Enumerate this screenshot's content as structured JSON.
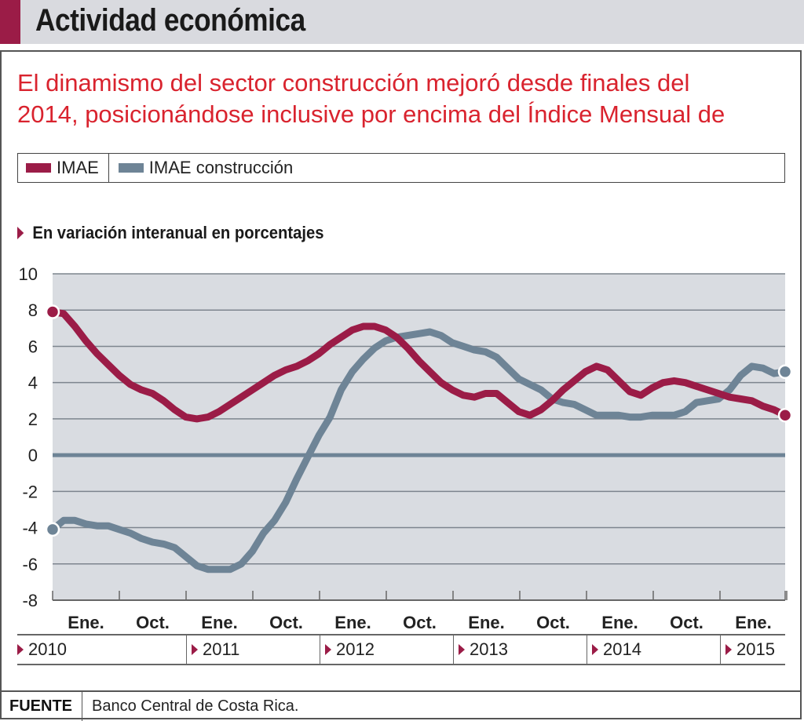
{
  "header": {
    "title": "Actividad económica",
    "accent_color": "#9b1c47"
  },
  "subtitle": {
    "line1": "El dinamismo del sector construcción mejoró desde finales del",
    "line2": "2014, posicionándose inclusive por encima del Índice Mensual de"
  },
  "legend": [
    {
      "label": "IMAE",
      "color": "#9b1c47"
    },
    {
      "label": "IMAE construcción",
      "color": "#6e8496"
    }
  ],
  "unit_label": "En variación interanual en porcentajes",
  "years": [
    "2010",
    "2011",
    "2012",
    "2013",
    "2014",
    "2015"
  ],
  "source": {
    "label": "FUENTE",
    "text": "Banco Central de Costa Rica."
  },
  "chart_data": {
    "type": "line",
    "title": "En variación interanual en porcentajes",
    "xlabel": "",
    "ylabel": "",
    "ylim": [
      -8,
      10
    ],
    "yticks": [
      10,
      8,
      6,
      4,
      2,
      0,
      -2,
      -4,
      -6,
      -8
    ],
    "grid": true,
    "background": "#d9dce1",
    "x_start": "2010-01",
    "x_end": "2015-06",
    "x_tick_labels": [
      "Ene.",
      "Oct.",
      "Ene.",
      "Oct.",
      "Ene.",
      "Oct.",
      "Ene.",
      "Oct.",
      "Ene.",
      "Oct.",
      "Ene."
    ],
    "x_year_labels": [
      "2010",
      "2011",
      "2012",
      "2013",
      "2014",
      "2015"
    ],
    "legend_position": "top",
    "series": [
      {
        "name": "IMAE",
        "color": "#9b1c47",
        "values": [
          7.9,
          7.8,
          7.1,
          6.3,
          5.6,
          5.0,
          4.4,
          3.9,
          3.6,
          3.4,
          3.0,
          2.5,
          2.1,
          2.0,
          2.1,
          2.4,
          2.8,
          3.2,
          3.6,
          4.0,
          4.4,
          4.7,
          4.9,
          5.2,
          5.6,
          6.1,
          6.5,
          6.9,
          7.1,
          7.1,
          6.9,
          6.5,
          5.9,
          5.2,
          4.6,
          4.0,
          3.6,
          3.3,
          3.2,
          3.4,
          3.4,
          2.9,
          2.4,
          2.2,
          2.5,
          3.0,
          3.6,
          4.1,
          4.6,
          4.9,
          4.7,
          4.1,
          3.5,
          3.3,
          3.7,
          4.0,
          4.1,
          4.0,
          3.8,
          3.6,
          3.4,
          3.2,
          3.1,
          3.0,
          2.7,
          2.5,
          2.2
        ]
      },
      {
        "name": "IMAE construcción",
        "color": "#6e8496",
        "values": [
          -4.1,
          -3.6,
          -3.6,
          -3.8,
          -3.9,
          -3.9,
          -4.1,
          -4.3,
          -4.6,
          -4.8,
          -4.9,
          -5.1,
          -5.6,
          -6.1,
          -6.3,
          -6.3,
          -6.3,
          -6.0,
          -5.3,
          -4.3,
          -3.6,
          -2.6,
          -1.3,
          -0.1,
          1.1,
          2.1,
          3.6,
          4.6,
          5.3,
          5.9,
          6.3,
          6.5,
          6.6,
          6.7,
          6.8,
          6.6,
          6.2,
          6.0,
          5.8,
          5.7,
          5.4,
          4.8,
          4.2,
          3.9,
          3.6,
          3.1,
          2.9,
          2.8,
          2.5,
          2.2,
          2.2,
          2.2,
          2.1,
          2.1,
          2.2,
          2.2,
          2.2,
          2.4,
          2.9,
          3.0,
          3.1,
          3.6,
          4.4,
          4.9,
          4.8,
          4.5,
          4.6
        ]
      }
    ]
  }
}
